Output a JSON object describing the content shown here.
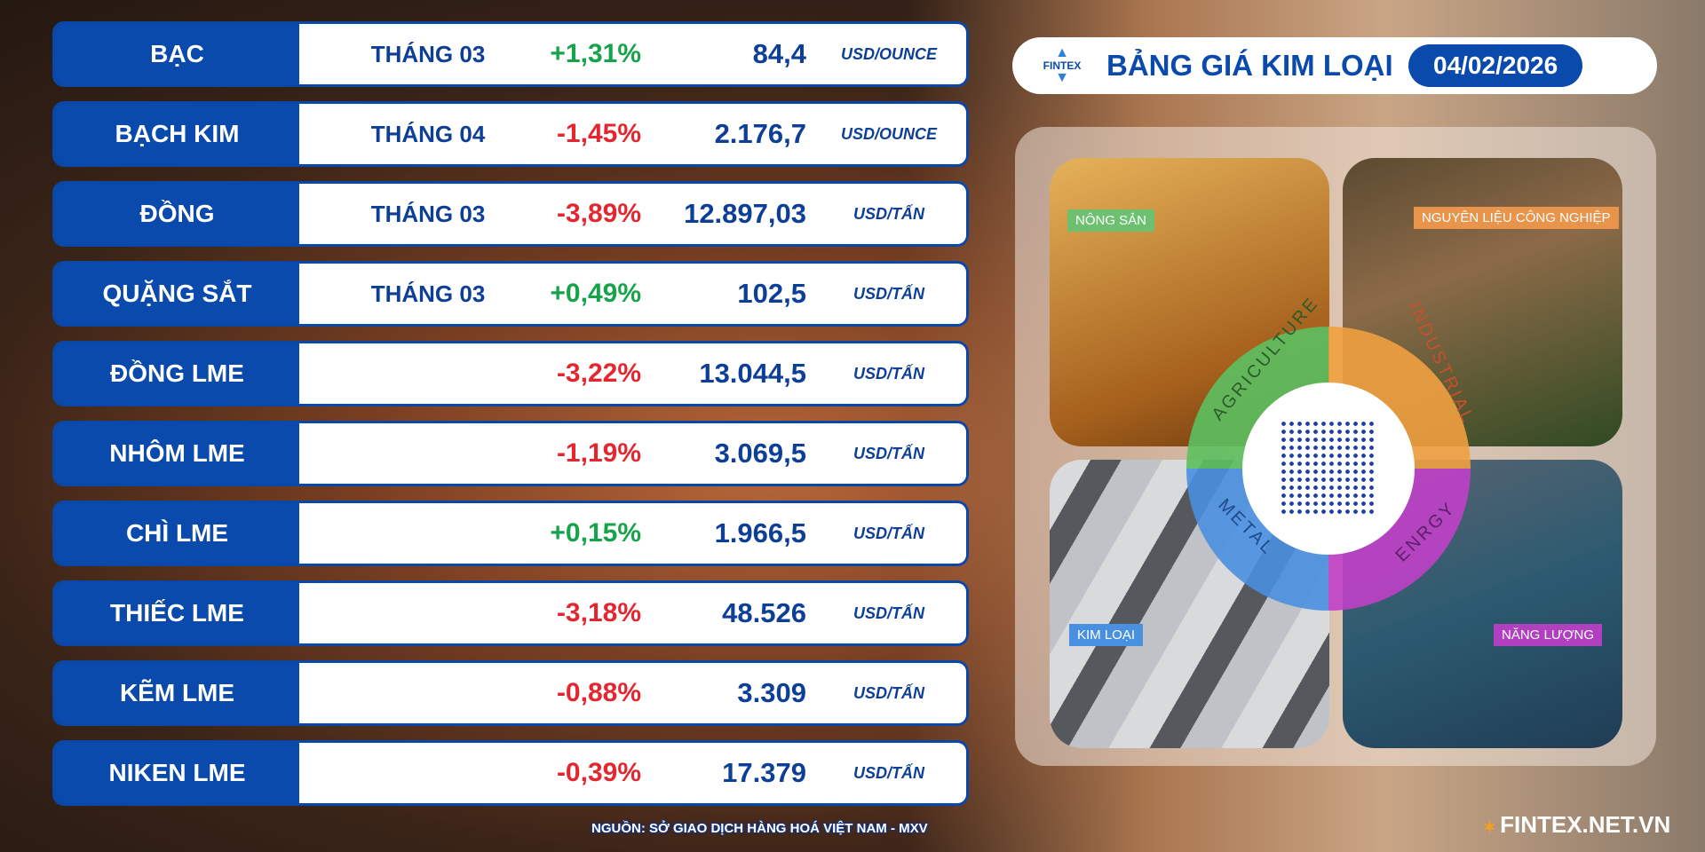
{
  "header": {
    "logo_text": "FINTEX",
    "title": "BẢNG GIÁ KIM LOẠI",
    "date": "04/02/2026"
  },
  "rows": [
    {
      "name": "BẠC",
      "month": "THÁNG 03",
      "change": "+1,31%",
      "direction": "up",
      "price": "84,4",
      "unit": "USD/OUNCE"
    },
    {
      "name": "BẠCH KIM",
      "month": "THÁNG 04",
      "change": "-1,45%",
      "direction": "down",
      "price": "2.176,7",
      "unit": "USD/OUNCE"
    },
    {
      "name": "ĐỒNG",
      "month": "THÁNG 03",
      "change": "-3,89%",
      "direction": "down",
      "price": "12.897,03",
      "unit": "USD/TẤN"
    },
    {
      "name": "QUẶNG SẮT",
      "month": "THÁNG 03",
      "change": "+0,49%",
      "direction": "up",
      "price": "102,5",
      "unit": "USD/TẤN"
    },
    {
      "name": "ĐỒNG LME",
      "month": "",
      "change": "-3,22%",
      "direction": "down",
      "price": "13.044,5",
      "unit": "USD/TẤN"
    },
    {
      "name": "NHÔM LME",
      "month": "",
      "change": "-1,19%",
      "direction": "down",
      "price": "3.069,5",
      "unit": "USD/TẤN"
    },
    {
      "name": "CHÌ LME",
      "month": "",
      "change": "+0,15%",
      "direction": "up",
      "price": "1.966,5",
      "unit": "USD/TẤN"
    },
    {
      "name": "THIẾC LME",
      "month": "",
      "change": "-3,18%",
      "direction": "down",
      "price": "48.526",
      "unit": "USD/TẤN"
    },
    {
      "name": "KẼM LME",
      "month": "",
      "change": "-0,88%",
      "direction": "down",
      "price": "3.309",
      "unit": "USD/TẤN"
    },
    {
      "name": "NIKEN LME",
      "month": "",
      "change": "-0,39%",
      "direction": "down",
      "price": "17.379",
      "unit": "USD/TẤN"
    }
  ],
  "colors": {
    "up": "#16a34a",
    "down": "#e3262f",
    "brand": "#0b4aad"
  },
  "panel": {
    "tiles": [
      {
        "label": "NÔNG SẢN",
        "ring": "AGRICULTURE",
        "color": "#5cc060"
      },
      {
        "label": "NGUYÊN LIỆU CÔNG NGHIỆP",
        "ring": "INDUSTRIAL",
        "color": "#e8944a"
      },
      {
        "label": "KIM LOẠI",
        "ring": "METAL",
        "color": "#4a90e0"
      },
      {
        "label": "NĂNG LƯỢNG",
        "ring": "ENRGY",
        "color": "#b040c0"
      }
    ],
    "qr_logo": "FINTEX"
  },
  "footer": {
    "source": "NGUỒN: SỞ GIAO DỊCH HÀNG HOÁ VIỆT NAM - MXV",
    "site": "FINTEX.NET.VN"
  }
}
